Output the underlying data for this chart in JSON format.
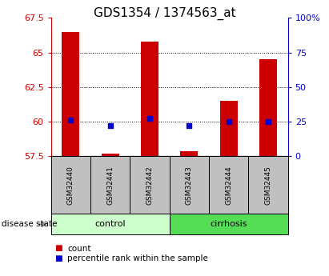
{
  "title": "GDS1354 / 1374563_at",
  "samples": [
    "GSM32440",
    "GSM32441",
    "GSM32442",
    "GSM32443",
    "GSM32444",
    "GSM32445"
  ],
  "count_values": [
    66.5,
    57.65,
    65.8,
    57.85,
    61.5,
    64.5
  ],
  "count_base": 57.5,
  "percentile_values": [
    26,
    22,
    27,
    22,
    25,
    25
  ],
  "ylim_left": [
    57.5,
    67.5
  ],
  "ylim_right": [
    0,
    100
  ],
  "yticks_left": [
    57.5,
    60.0,
    62.5,
    65.0,
    67.5
  ],
  "ytick_labels_left": [
    "57.5",
    "60",
    "62.5",
    "65",
    "67.5"
  ],
  "yticks_right": [
    0,
    25,
    50,
    75,
    100
  ],
  "ytick_labels_right": [
    "0",
    "25",
    "50",
    "75",
    "100%"
  ],
  "groups": [
    {
      "label": "control",
      "samples": [
        0,
        1,
        2
      ],
      "color": "#ccffcc"
    },
    {
      "label": "cirrhosis",
      "samples": [
        3,
        4,
        5
      ],
      "color": "#55dd55"
    }
  ],
  "bar_color": "#cc0000",
  "dot_color": "#0000cc",
  "group_label_text": "disease state",
  "legend_count_label": "count",
  "legend_pct_label": "percentile rank within the sample",
  "bar_width": 0.45,
  "grid_color": "black",
  "title_fontsize": 11,
  "label_fontsize": 8,
  "tick_fontsize": 8
}
